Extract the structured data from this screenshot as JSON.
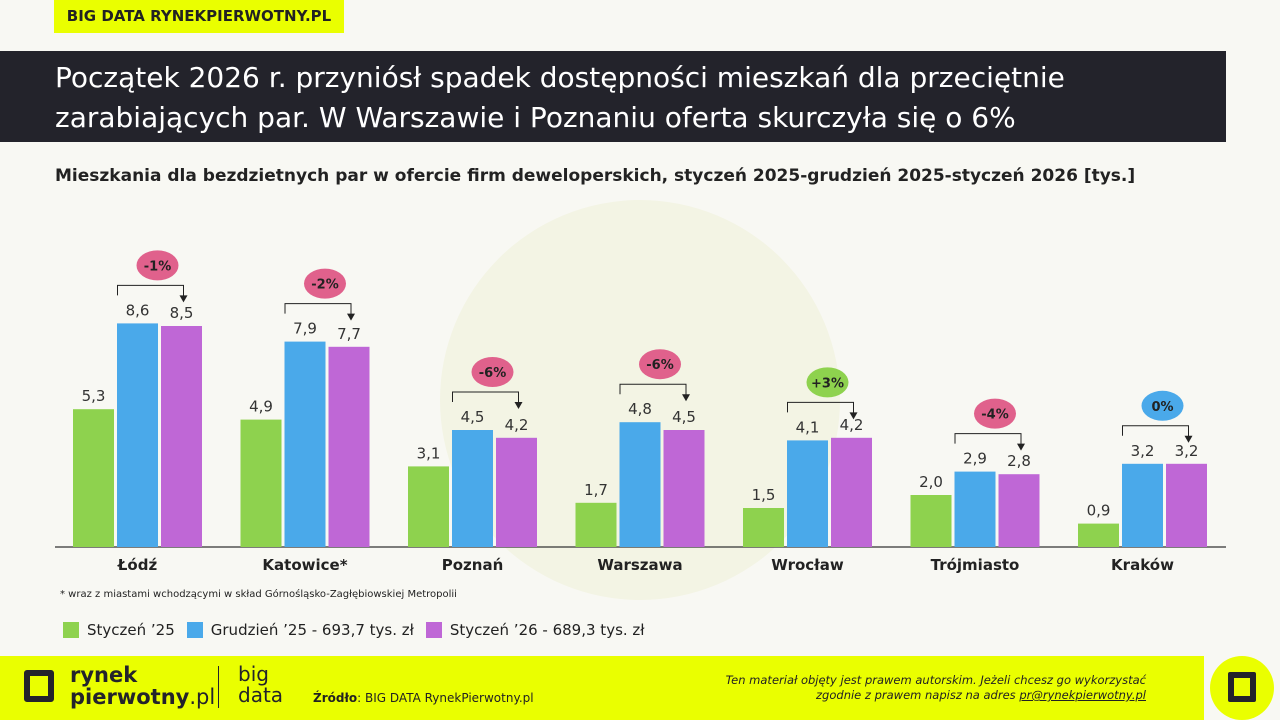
{
  "header_tag": "BIG DATA RYNEKPIERWOTNY.PL",
  "title_line1": "Początek 2026 r. przyniósł spadek dostępności mieszkań dla przeciętnie",
  "title_line2": "zarabiających par. W Warszawie i Poznaniu oferta skurczyła się o 6%",
  "chart_data": {
    "type": "bar",
    "title": "Mieszkania dla bezdzietnych par w ofercie firm deweloperskich, styczeń 2025-grudzień 2025-styczeń 2026 [tys.]",
    "categories": [
      "Łódź",
      "Katowice*",
      "Poznań",
      "Warszawa",
      "Wrocław",
      "Trójmiasto",
      "Kraków"
    ],
    "series": [
      {
        "name": "Styczeń ’25",
        "color": "#8ed24e",
        "values": [
          5.3,
          4.9,
          3.1,
          1.7,
          1.5,
          2.0,
          0.9
        ],
        "labels": [
          "5,3",
          "4,9",
          "3,1",
          "1,7",
          "1,5",
          "2,0",
          "0,9"
        ]
      },
      {
        "name": "Grudzień ’25 - 693,7 tys. zł",
        "color": "#4aa9ea",
        "values": [
          8.6,
          7.9,
          4.5,
          4.8,
          4.1,
          2.9,
          3.2
        ],
        "labels": [
          "8,6",
          "7,9",
          "4,5",
          "4,8",
          "4,1",
          "2,9",
          "3,2"
        ]
      },
      {
        "name": "Styczeń ’26 - 689,3 tys. zł",
        "color": "#bf67d6",
        "values": [
          8.5,
          7.7,
          4.2,
          4.5,
          4.2,
          2.8,
          3.2
        ],
        "labels": [
          "8,5",
          "7,7",
          "4,2",
          "4,5",
          "4,2",
          "2,8",
          "3,2"
        ]
      }
    ],
    "changes": [
      {
        "label": "-1%",
        "color": "#e0618c"
      },
      {
        "label": "-2%",
        "color": "#e0618c"
      },
      {
        "label": "-6%",
        "color": "#e0618c"
      },
      {
        "label": "-6%",
        "color": "#e0618c"
      },
      {
        "label": "+3%",
        "color": "#8ed24e"
      },
      {
        "label": "-4%",
        "color": "#e0618c"
      },
      {
        "label": "0%",
        "color": "#4aa9ea"
      }
    ],
    "legend": "bottom-left",
    "grid": false
  },
  "footnote": "* wraz z miastami wchodzącymi w skład Górnośląsko-Zagłębiowskiej Metropolii",
  "footer": {
    "brand1": "rynek",
    "brand2": "pierwotny",
    "brand3": ".pl",
    "big1": "big",
    "big2": "data",
    "source_label": "Źródło",
    "source_value": ": BIG DATA RynekPierwotny.pl",
    "copy1": "Ten materiał objęty jest prawem autorskim. Jeżeli chcesz go wykorzystać",
    "copy2": "zgodnie z prawem napisz na adres ",
    "email": "pr@rynekpierwotny.pl"
  }
}
